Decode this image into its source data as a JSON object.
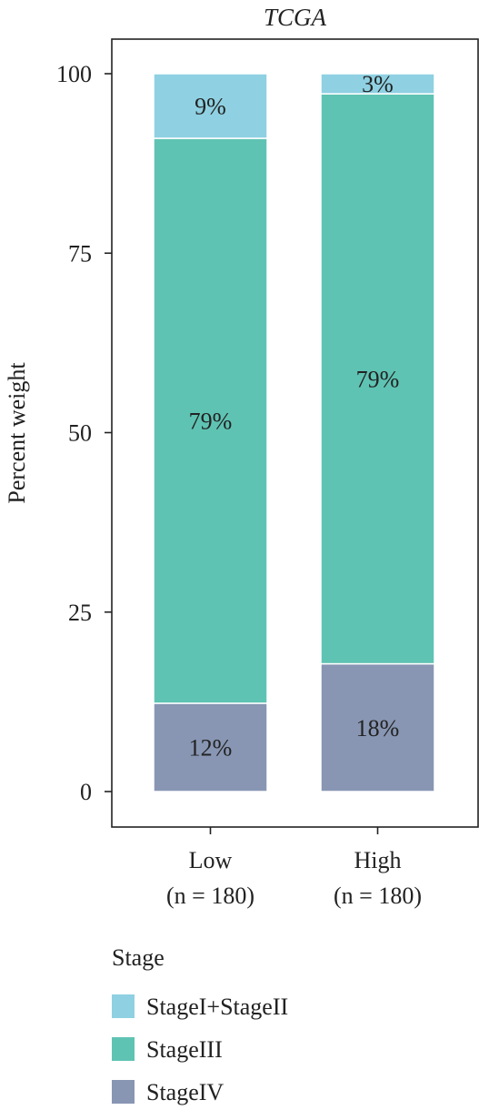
{
  "chart_data": {
    "type": "bar",
    "stacked": true,
    "title": "TCGA",
    "xlabel": "",
    "ylabel": "Percent weight",
    "ylim": [
      0,
      100
    ],
    "yticks": [
      0,
      25,
      50,
      75,
      100
    ],
    "ytick_labels": [
      "0",
      "25",
      "50",
      "75",
      "100"
    ],
    "categories": [
      {
        "line1": "Low",
        "line2": "(n = 180)"
      },
      {
        "line1": "High",
        "line2": "(n = 180)"
      }
    ],
    "series": [
      {
        "name": "StageIV",
        "color": "#8896b3",
        "values": [
          12.3,
          17.8
        ],
        "labels": [
          "12%",
          "18%"
        ]
      },
      {
        "name": "StageIII",
        "color": "#5fc3b3",
        "values": [
          78.7,
          79.4
        ],
        "labels": [
          "79%",
          "79%"
        ]
      },
      {
        "name": "StageI+StageII",
        "color": "#8fd1e2",
        "values": [
          9.0,
          2.8
        ],
        "labels": [
          "9%",
          "3%"
        ]
      }
    ],
    "legend": {
      "title": "Stage",
      "placement": "bottom-left",
      "order": [
        "StageI+StageII",
        "StageIII",
        "StageIV"
      ]
    },
    "grid": false
  }
}
